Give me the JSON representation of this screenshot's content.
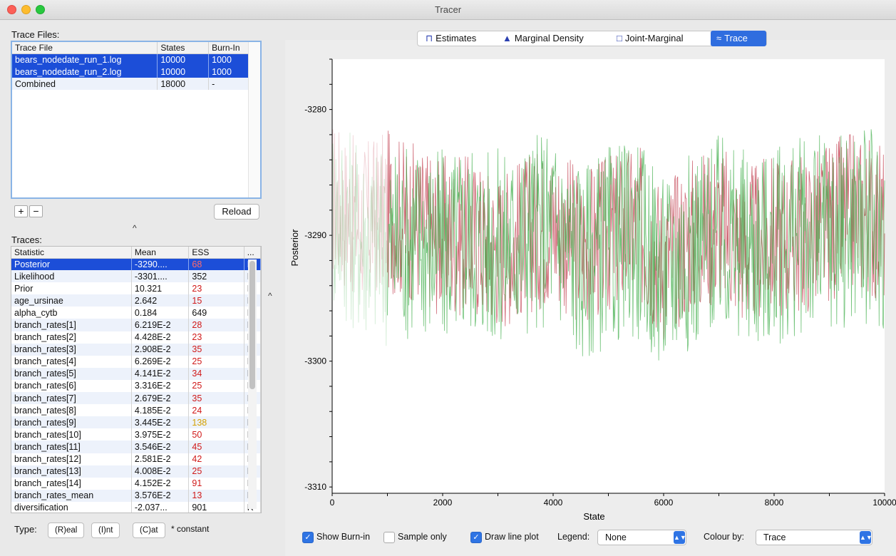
{
  "window": {
    "title": "Tracer"
  },
  "trace_files": {
    "label": "Trace Files:",
    "headers": [
      "Trace File",
      "States",
      "Burn-In"
    ],
    "rows": [
      {
        "file": "bears_nodedate_run_1.log",
        "states": "10000",
        "burnin": "1000",
        "selected": true
      },
      {
        "file": "bears_nodedate_run_2.log",
        "states": "10000",
        "burnin": "1000",
        "selected": true
      },
      {
        "file": "Combined",
        "states": "18000",
        "burnin": "-",
        "selected": false
      }
    ],
    "add_label": "+",
    "remove_label": "−",
    "reload_label": "Reload"
  },
  "traces": {
    "label": "Traces:",
    "headers": [
      "Statistic",
      "Mean",
      "ESS",
      "..."
    ],
    "rows": [
      {
        "stat": "Posterior",
        "mean": "-3290....",
        "ess": "68",
        "type": "R",
        "ess_color": "red",
        "selected": true
      },
      {
        "stat": "Likelihood",
        "mean": "-3301....",
        "ess": "352",
        "type": "R",
        "ess_color": "black"
      },
      {
        "stat": "Prior",
        "mean": "10.321",
        "ess": "23",
        "type": "R",
        "ess_color": "red"
      },
      {
        "stat": "age_ursinae",
        "mean": "2.642",
        "ess": "15",
        "type": "R",
        "ess_color": "red"
      },
      {
        "stat": "alpha_cytb",
        "mean": "0.184",
        "ess": "649",
        "type": "R",
        "ess_color": "black"
      },
      {
        "stat": "branch_rates[1]",
        "mean": "6.219E-2",
        "ess": "28",
        "type": "R",
        "ess_color": "red"
      },
      {
        "stat": "branch_rates[2]",
        "mean": "4.428E-2",
        "ess": "23",
        "type": "R",
        "ess_color": "red"
      },
      {
        "stat": "branch_rates[3]",
        "mean": "2.908E-2",
        "ess": "35",
        "type": "R",
        "ess_color": "red"
      },
      {
        "stat": "branch_rates[4]",
        "mean": "6.269E-2",
        "ess": "25",
        "type": "R",
        "ess_color": "red"
      },
      {
        "stat": "branch_rates[5]",
        "mean": "4.141E-2",
        "ess": "34",
        "type": "R",
        "ess_color": "red"
      },
      {
        "stat": "branch_rates[6]",
        "mean": "3.316E-2",
        "ess": "25",
        "type": "R",
        "ess_color": "red"
      },
      {
        "stat": "branch_rates[7]",
        "mean": "2.679E-2",
        "ess": "35",
        "type": "R",
        "ess_color": "red"
      },
      {
        "stat": "branch_rates[8]",
        "mean": "4.185E-2",
        "ess": "24",
        "type": "R",
        "ess_color": "red"
      },
      {
        "stat": "branch_rates[9]",
        "mean": "3.445E-2",
        "ess": "138",
        "type": "R",
        "ess_color": "yellow"
      },
      {
        "stat": "branch_rates[10]",
        "mean": "3.975E-2",
        "ess": "50",
        "type": "R",
        "ess_color": "red"
      },
      {
        "stat": "branch_rates[11]",
        "mean": "3.546E-2",
        "ess": "45",
        "type": "R",
        "ess_color": "red"
      },
      {
        "stat": "branch_rates[12]",
        "mean": "2.581E-2",
        "ess": "42",
        "type": "R",
        "ess_color": "red"
      },
      {
        "stat": "branch_rates[13]",
        "mean": "4.008E-2",
        "ess": "25",
        "type": "R",
        "ess_color": "red"
      },
      {
        "stat": "branch_rates[14]",
        "mean": "4.152E-2",
        "ess": "91",
        "type": "R",
        "ess_color": "red"
      },
      {
        "stat": "branch_rates_mean",
        "mean": "3.576E-2",
        "ess": "13",
        "type": "R",
        "ess_color": "red"
      },
      {
        "stat": "diversification",
        "mean": "-2.037...",
        "ess": "901",
        "type": "R",
        "ess_color": "black"
      }
    ]
  },
  "type_bar": {
    "label": "Type:",
    "buttons": [
      "(R)eal",
      "(I)nt",
      "(C)at"
    ],
    "note": "* constant"
  },
  "tabs": [
    {
      "label": "Estimates",
      "icon": "estimates-icon",
      "active": false
    },
    {
      "label": "Marginal Density",
      "icon": "density-icon",
      "active": false
    },
    {
      "label": "Joint-Marginal",
      "icon": "joint-marginal-icon",
      "active": false
    },
    {
      "label": "Trace",
      "icon": "trace-icon",
      "active": true
    }
  ],
  "colors": {
    "selection": "#1c4ed8",
    "accent": "#2f74e4",
    "trace_run1": "#c0394b",
    "trace_run2": "#3fae4a"
  },
  "chart_data": {
    "type": "line",
    "title": "",
    "xlabel": "State",
    "ylabel": "Posterior",
    "xlim": [
      0,
      10000
    ],
    "ylim": [
      -3310.5,
      -3276
    ],
    "x_ticks": [
      "0",
      "2000",
      "4000",
      "6000",
      "8000",
      "10000"
    ],
    "y_ticks": [
      "-3280",
      "-3290",
      "-3300",
      "-3310"
    ],
    "burn_in": 1000,
    "series": [
      {
        "color": "#c0394b",
        "x": [
          0,
          500,
          1000,
          1500,
          2000,
          2500,
          3000,
          3500,
          4000,
          4500,
          5000,
          5500,
          6000,
          6500,
          7000,
          7500,
          8000,
          8500,
          9000,
          9500,
          10000
        ],
        "y": [
          -3287,
          -3289,
          -3288,
          -3289,
          -3290,
          -3290,
          -3291,
          -3290,
          -3289,
          -3291,
          -3290,
          -3289,
          -3292,
          -3290,
          -3289,
          -3291,
          -3290,
          -3290,
          -3289,
          -3288,
          -3289
        ]
      },
      {
        "color": "#3fae4a",
        "x": [
          0,
          500,
          1000,
          1500,
          2000,
          2500,
          3000,
          3500,
          4000,
          4500,
          5000,
          5500,
          6000,
          6500,
          7000,
          7500,
          8000,
          8500,
          9000,
          9500,
          10000
        ],
        "y": [
          -3288,
          -3290,
          -3291,
          -3290,
          -3291,
          -3290,
          -3291,
          -3290,
          -3289,
          -3292,
          -3291,
          -3290,
          -3293,
          -3291,
          -3290,
          -3291,
          -3291,
          -3290,
          -3290,
          -3289,
          -3290
        ]
      }
    ]
  },
  "controls": {
    "show_burnin": {
      "label": "Show Burn-in",
      "checked": true
    },
    "sample_only": {
      "label": "Sample only",
      "checked": false
    },
    "draw_line_plot": {
      "label": "Draw line plot",
      "checked": true
    },
    "legend_label": "Legend:",
    "legend_value": "None",
    "colour_by_label": "Colour by:",
    "colour_by_value": "Trace"
  }
}
